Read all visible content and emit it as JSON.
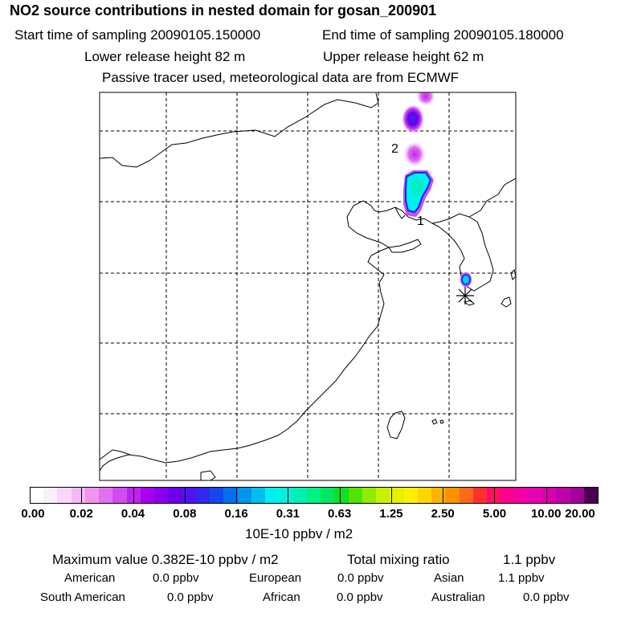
{
  "header": {
    "title": "NO2 source contributions in nested domain for gosan_200901",
    "start": "Start time of sampling 20090105.150000",
    "end": "End time of sampling 20090105.180000",
    "lower": "Lower release height   82 m",
    "upper": "Upper release height   62 m",
    "info": "Passive tracer used, meteorological data are from ECMWF"
  },
  "map": {
    "labels": [
      {
        "id": "label-1",
        "text": "1"
      },
      {
        "id": "label-2",
        "text": "2"
      }
    ],
    "receptor": "gosan-receptor-star"
  },
  "colorbar": {
    "ticks": [
      "0.00",
      "0.02",
      "0.04",
      "0.08",
      "0.16",
      "0.31",
      "0.63",
      "1.25",
      "2.50",
      "5.00",
      "10.00",
      "20.00"
    ],
    "unit": "10E-10 ppbv / m2",
    "colors": [
      "#ffffff",
      "#fdeefd",
      "#fad6fa",
      "#f5b8f5",
      "#ee96ee",
      "#e070f0",
      "#d04cf0",
      "#bf22f0",
      "#a800ee",
      "#8800ee",
      "#6c00ee",
      "#5012ee",
      "#3228ee",
      "#1448ee",
      "#0070ee",
      "#0096ee",
      "#00beee",
      "#00f0f0",
      "#00f0d8",
      "#00f0b0",
      "#00f088",
      "#00e860",
      "#10e020",
      "#50e400",
      "#90ec00",
      "#c8f000",
      "#e6f000",
      "#fff000",
      "#ffd600",
      "#ffb400",
      "#ff9000",
      "#ff6818",
      "#ff3030",
      "#ff1060",
      "#ff0090",
      "#f400a8",
      "#e800b0",
      "#d800b0",
      "#c000a8",
      "#a00098",
      "#4a0050"
    ]
  },
  "summary": {
    "max": "Maximum value  0.382E-10 ppbv / m2",
    "total_label": "Total mixing ratio",
    "total_value": "1.1 ppbv",
    "american_label": "American",
    "american_value": "0.0 ppbv",
    "european_label": "European",
    "european_value": "0.0 ppbv",
    "asian_label": "Asian",
    "asian_value": "1.1 ppbv",
    "southamerican_label": "South American",
    "southamerican_value": "0.0 ppbv",
    "african_label": "African",
    "african_value": "0.0 ppbv",
    "australian_label": "Australian",
    "australian_value": "0.0 ppbv"
  }
}
